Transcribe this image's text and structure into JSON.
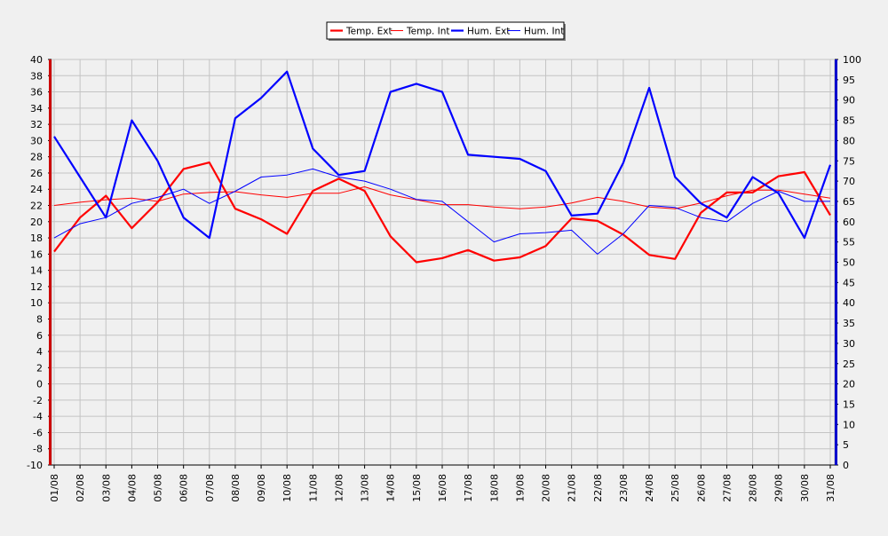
{
  "chart_data": {
    "type": "line",
    "title": "",
    "categories": [
      "01/08",
      "02/08",
      "03/08",
      "04/08",
      "05/08",
      "06/08",
      "07/08",
      "08/08",
      "09/08",
      "10/08",
      "11/08",
      "12/08",
      "13/08",
      "14/08",
      "15/08",
      "16/08",
      "17/08",
      "18/08",
      "19/08",
      "20/08",
      "21/08",
      "22/08",
      "23/08",
      "24/08",
      "25/08",
      "26/08",
      "27/08",
      "28/08",
      "29/08",
      "30/08",
      "31/08"
    ],
    "y_left": {
      "min": -10,
      "max": 40,
      "step": 2
    },
    "y_right": {
      "min": 0,
      "max": 100,
      "step": 5
    },
    "grid": true,
    "legend_position": "top-center",
    "series": [
      {
        "name": "Temp. Ext",
        "axis": "left",
        "color": "#ff0000",
        "width": "thick",
        "values": [
          16.3,
          20.5,
          23.2,
          19.2,
          22.4,
          26.5,
          27.3,
          21.6,
          20.3,
          18.5,
          23.8,
          25.3,
          23.8,
          18.2,
          15.0,
          15.5,
          16.5,
          15.2,
          15.6,
          17.0,
          20.4,
          20.1,
          18.4,
          15.9,
          15.4,
          21.1,
          23.6,
          23.6,
          25.6,
          26.1,
          20.8
        ]
      },
      {
        "name": "Temp. Int",
        "axis": "left",
        "color": "#ff0000",
        "width": "thin",
        "values": [
          22.0,
          22.4,
          22.7,
          22.9,
          22.5,
          23.4,
          23.6,
          23.7,
          23.3,
          23.0,
          23.5,
          23.5,
          24.3,
          23.3,
          22.7,
          22.1,
          22.1,
          21.8,
          21.6,
          21.8,
          22.3,
          23.0,
          22.5,
          21.8,
          21.6,
          22.3,
          23.2,
          23.9,
          23.9,
          23.4,
          22.9
        ]
      },
      {
        "name": "Hum. Ext",
        "axis": "right",
        "color": "#0000ff",
        "width": "thick",
        "values": [
          81,
          71,
          61,
          85,
          75,
          61,
          56,
          85.5,
          90.5,
          97,
          78,
          71.5,
          72.5,
          92,
          94,
          92,
          76.5,
          76,
          75.5,
          72.5,
          61.5,
          62,
          74.5,
          93,
          71,
          64.5,
          61,
          71,
          67,
          56,
          74
        ]
      },
      {
        "name": "Hum. Int",
        "axis": "right",
        "color": "#0000ff",
        "width": "thin",
        "values": [
          56,
          59.5,
          61,
          64.5,
          66,
          68,
          64.5,
          67.5,
          71,
          71.5,
          73,
          71,
          70,
          68,
          65.5,
          65,
          60,
          55,
          57,
          57.3,
          57.9,
          52,
          57,
          64,
          63.5,
          61,
          60,
          64.5,
          67.5,
          65,
          65
        ]
      }
    ]
  }
}
